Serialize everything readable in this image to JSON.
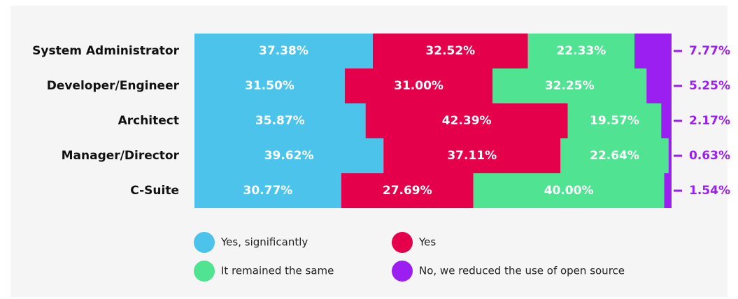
{
  "chart_data": {
    "type": "stacked-bar-horizontal",
    "categories": [
      "System Administrator",
      "Developer/Engineer",
      "Architect",
      "Manager/Director",
      "C-Suite"
    ],
    "xlim": [
      0,
      100
    ],
    "series": [
      {
        "name": "Yes, significantly",
        "color": "#4cc3ea",
        "values": [
          37.38,
          31.5,
          35.87,
          39.62,
          30.77
        ],
        "value_labels": [
          "37.38%",
          "31.50%",
          "35.87%",
          "39.62%",
          "30.77%"
        ]
      },
      {
        "name": "Yes",
        "color": "#e5004b",
        "values": [
          32.52,
          31.0,
          42.39,
          37.11,
          27.69
        ],
        "value_labels": [
          "32.52%",
          "31.00%",
          "42.39%",
          "37.11%",
          "27.69%"
        ]
      },
      {
        "name": "It remained the same",
        "color": "#50e392",
        "values": [
          22.33,
          32.25,
          19.57,
          22.64,
          40.0
        ],
        "value_labels": [
          "22.33%",
          "32.25%",
          "19.57%",
          "22.64%",
          "40.00%"
        ]
      },
      {
        "name": "No, we reduced the use of open source",
        "color": "#9b1ff0",
        "values": [
          7.77,
          5.25,
          2.17,
          0.63,
          1.54
        ],
        "value_labels": [
          "7.77%",
          "5.25%",
          "2.17%",
          "0.63%",
          "1.54%"
        ]
      }
    ]
  }
}
